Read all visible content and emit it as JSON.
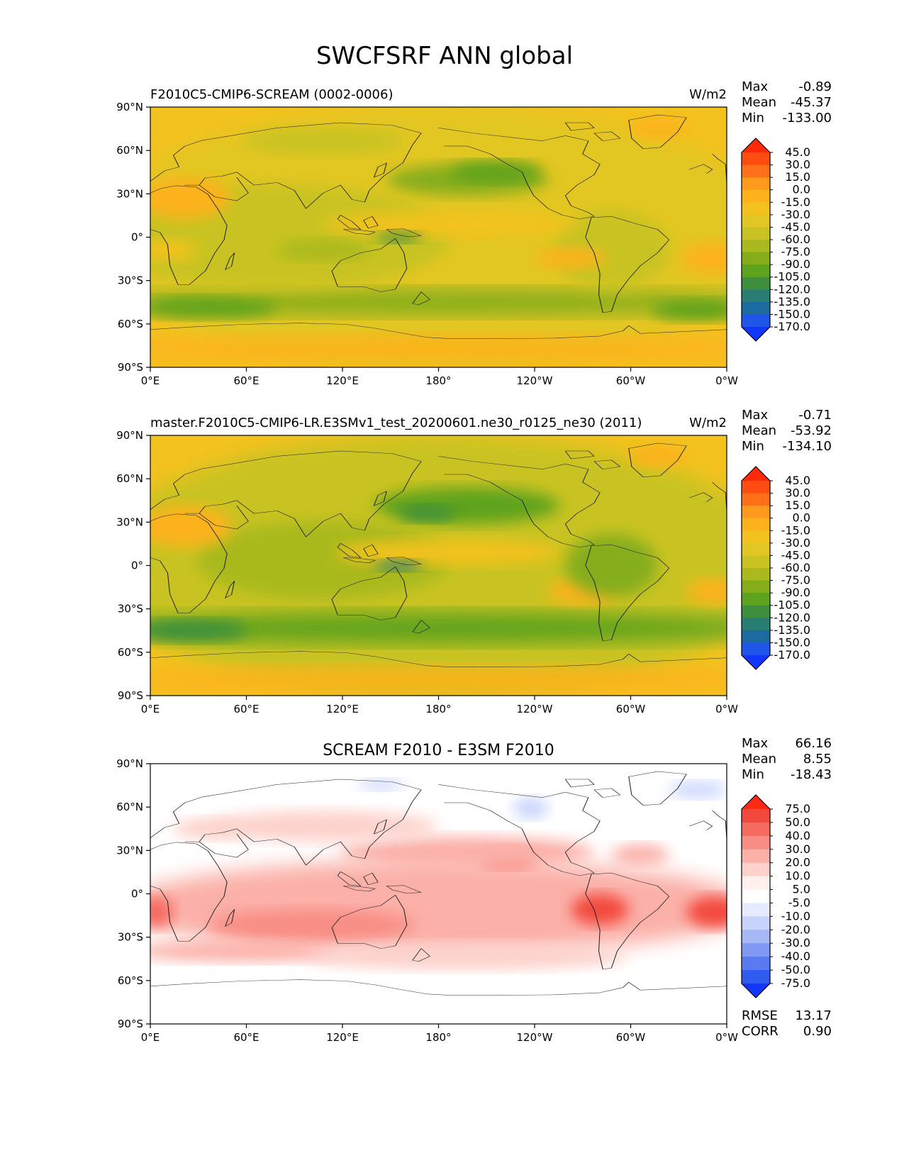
{
  "figure": {
    "title": "SWCFSRF ANN global"
  },
  "chart_data": [
    {
      "type": "heatmap",
      "panel_title_left": "F2010C5-CMIP6-SCREAM (0002-0006)",
      "panel_title_center": "",
      "units": "W/m2",
      "stats": {
        "max_label": "Max",
        "max": "-0.89",
        "mean_label": "Mean",
        "mean": "-45.37",
        "min_label": "Min",
        "min": "-133.00"
      },
      "colorbar_levels": [
        "45.0",
        "30.0",
        "15.0",
        "0.0",
        "-15.0",
        "-30.0",
        "-45.0",
        "-60.0",
        "-75.0",
        "-90.0",
        "-105.0",
        "-120.0",
        "-135.0",
        "-150.0",
        "-170.0"
      ],
      "colorbar_colors": [
        "#ff2a0a",
        "#ff4d12",
        "#ff7018",
        "#ff9a1c",
        "#fdb21c",
        "#f3c21f",
        "#e2c624",
        "#c8c323",
        "#a9b91e",
        "#85ad1a",
        "#5ea31c",
        "#3d8f3e",
        "#2a7d72",
        "#1b6aa0",
        "#1f55e8",
        "#1036ff"
      ],
      "x_ticks": [
        "0°E",
        "60°E",
        "120°E",
        "180°",
        "120°W",
        "60°W",
        "0°W"
      ],
      "y_ticks": [
        "90°N",
        "60°N",
        "30°N",
        "0°",
        "30°S",
        "60°S",
        "90°S"
      ],
      "field_mean": -45.37
    },
    {
      "type": "heatmap",
      "panel_title_left": "master.F2010C5-CMIP6-LR.E3SMv1_test_20200601.ne30_r0125_ne30 (2011)",
      "panel_title_center": "",
      "units": "W/m2",
      "stats": {
        "max_label": "Max",
        "max": "-0.71",
        "mean_label": "Mean",
        "mean": "-53.92",
        "min_label": "Min",
        "min": "-134.10"
      },
      "colorbar_levels": [
        "45.0",
        "30.0",
        "15.0",
        "0.0",
        "-15.0",
        "-30.0",
        "-45.0",
        "-60.0",
        "-75.0",
        "-90.0",
        "-105.0",
        "-120.0",
        "-135.0",
        "-150.0",
        "-170.0"
      ],
      "colorbar_colors": [
        "#ff2a0a",
        "#ff4d12",
        "#ff7018",
        "#ff9a1c",
        "#fdb21c",
        "#f3c21f",
        "#e2c624",
        "#c8c323",
        "#a9b91e",
        "#85ad1a",
        "#5ea31c",
        "#3d8f3e",
        "#2a7d72",
        "#1b6aa0",
        "#1f55e8",
        "#1036ff"
      ],
      "x_ticks": [
        "0°E",
        "60°E",
        "120°E",
        "180°",
        "120°W",
        "60°W",
        "0°W"
      ],
      "y_ticks": [
        "90°N",
        "60°N",
        "30°N",
        "0°",
        "30°S",
        "60°S",
        "90°S"
      ],
      "field_mean": -53.92
    },
    {
      "type": "heatmap",
      "panel_title_left": "",
      "panel_title_center": "SCREAM F2010 - E3SM F2010",
      "units": "",
      "stats": {
        "max_label": "Max",
        "max": "66.16",
        "mean_label": "Mean",
        "mean": "8.55",
        "min_label": "Min",
        "min": "-18.43"
      },
      "metrics": {
        "rmse_label": "RMSE",
        "rmse": "13.17",
        "corr_label": "CORR",
        "corr": "0.90"
      },
      "colorbar_levels": [
        "75.0",
        "50.0",
        "40.0",
        "30.0",
        "20.0",
        "10.0",
        "5.0",
        "-5.0",
        "-10.0",
        "-20.0",
        "-30.0",
        "-40.0",
        "-50.0",
        "-75.0"
      ],
      "colorbar_colors": [
        "#ff2a14",
        "#f3483d",
        "#f56b60",
        "#f88d84",
        "#fbb0a8",
        "#fdd2cc",
        "#fff0ee",
        "#ffffff",
        "#e6ebff",
        "#c8d3fc",
        "#a7b8f7",
        "#8099f3",
        "#5a7af1",
        "#305bf0",
        "#1036ff"
      ],
      "x_ticks": [
        "0°E",
        "60°E",
        "120°E",
        "180°",
        "120°W",
        "60°W",
        "0°W"
      ],
      "y_ticks": [
        "90°N",
        "60°N",
        "30°N",
        "0°",
        "30°S",
        "60°S",
        "90°S"
      ],
      "field_mean": 8.55
    }
  ]
}
